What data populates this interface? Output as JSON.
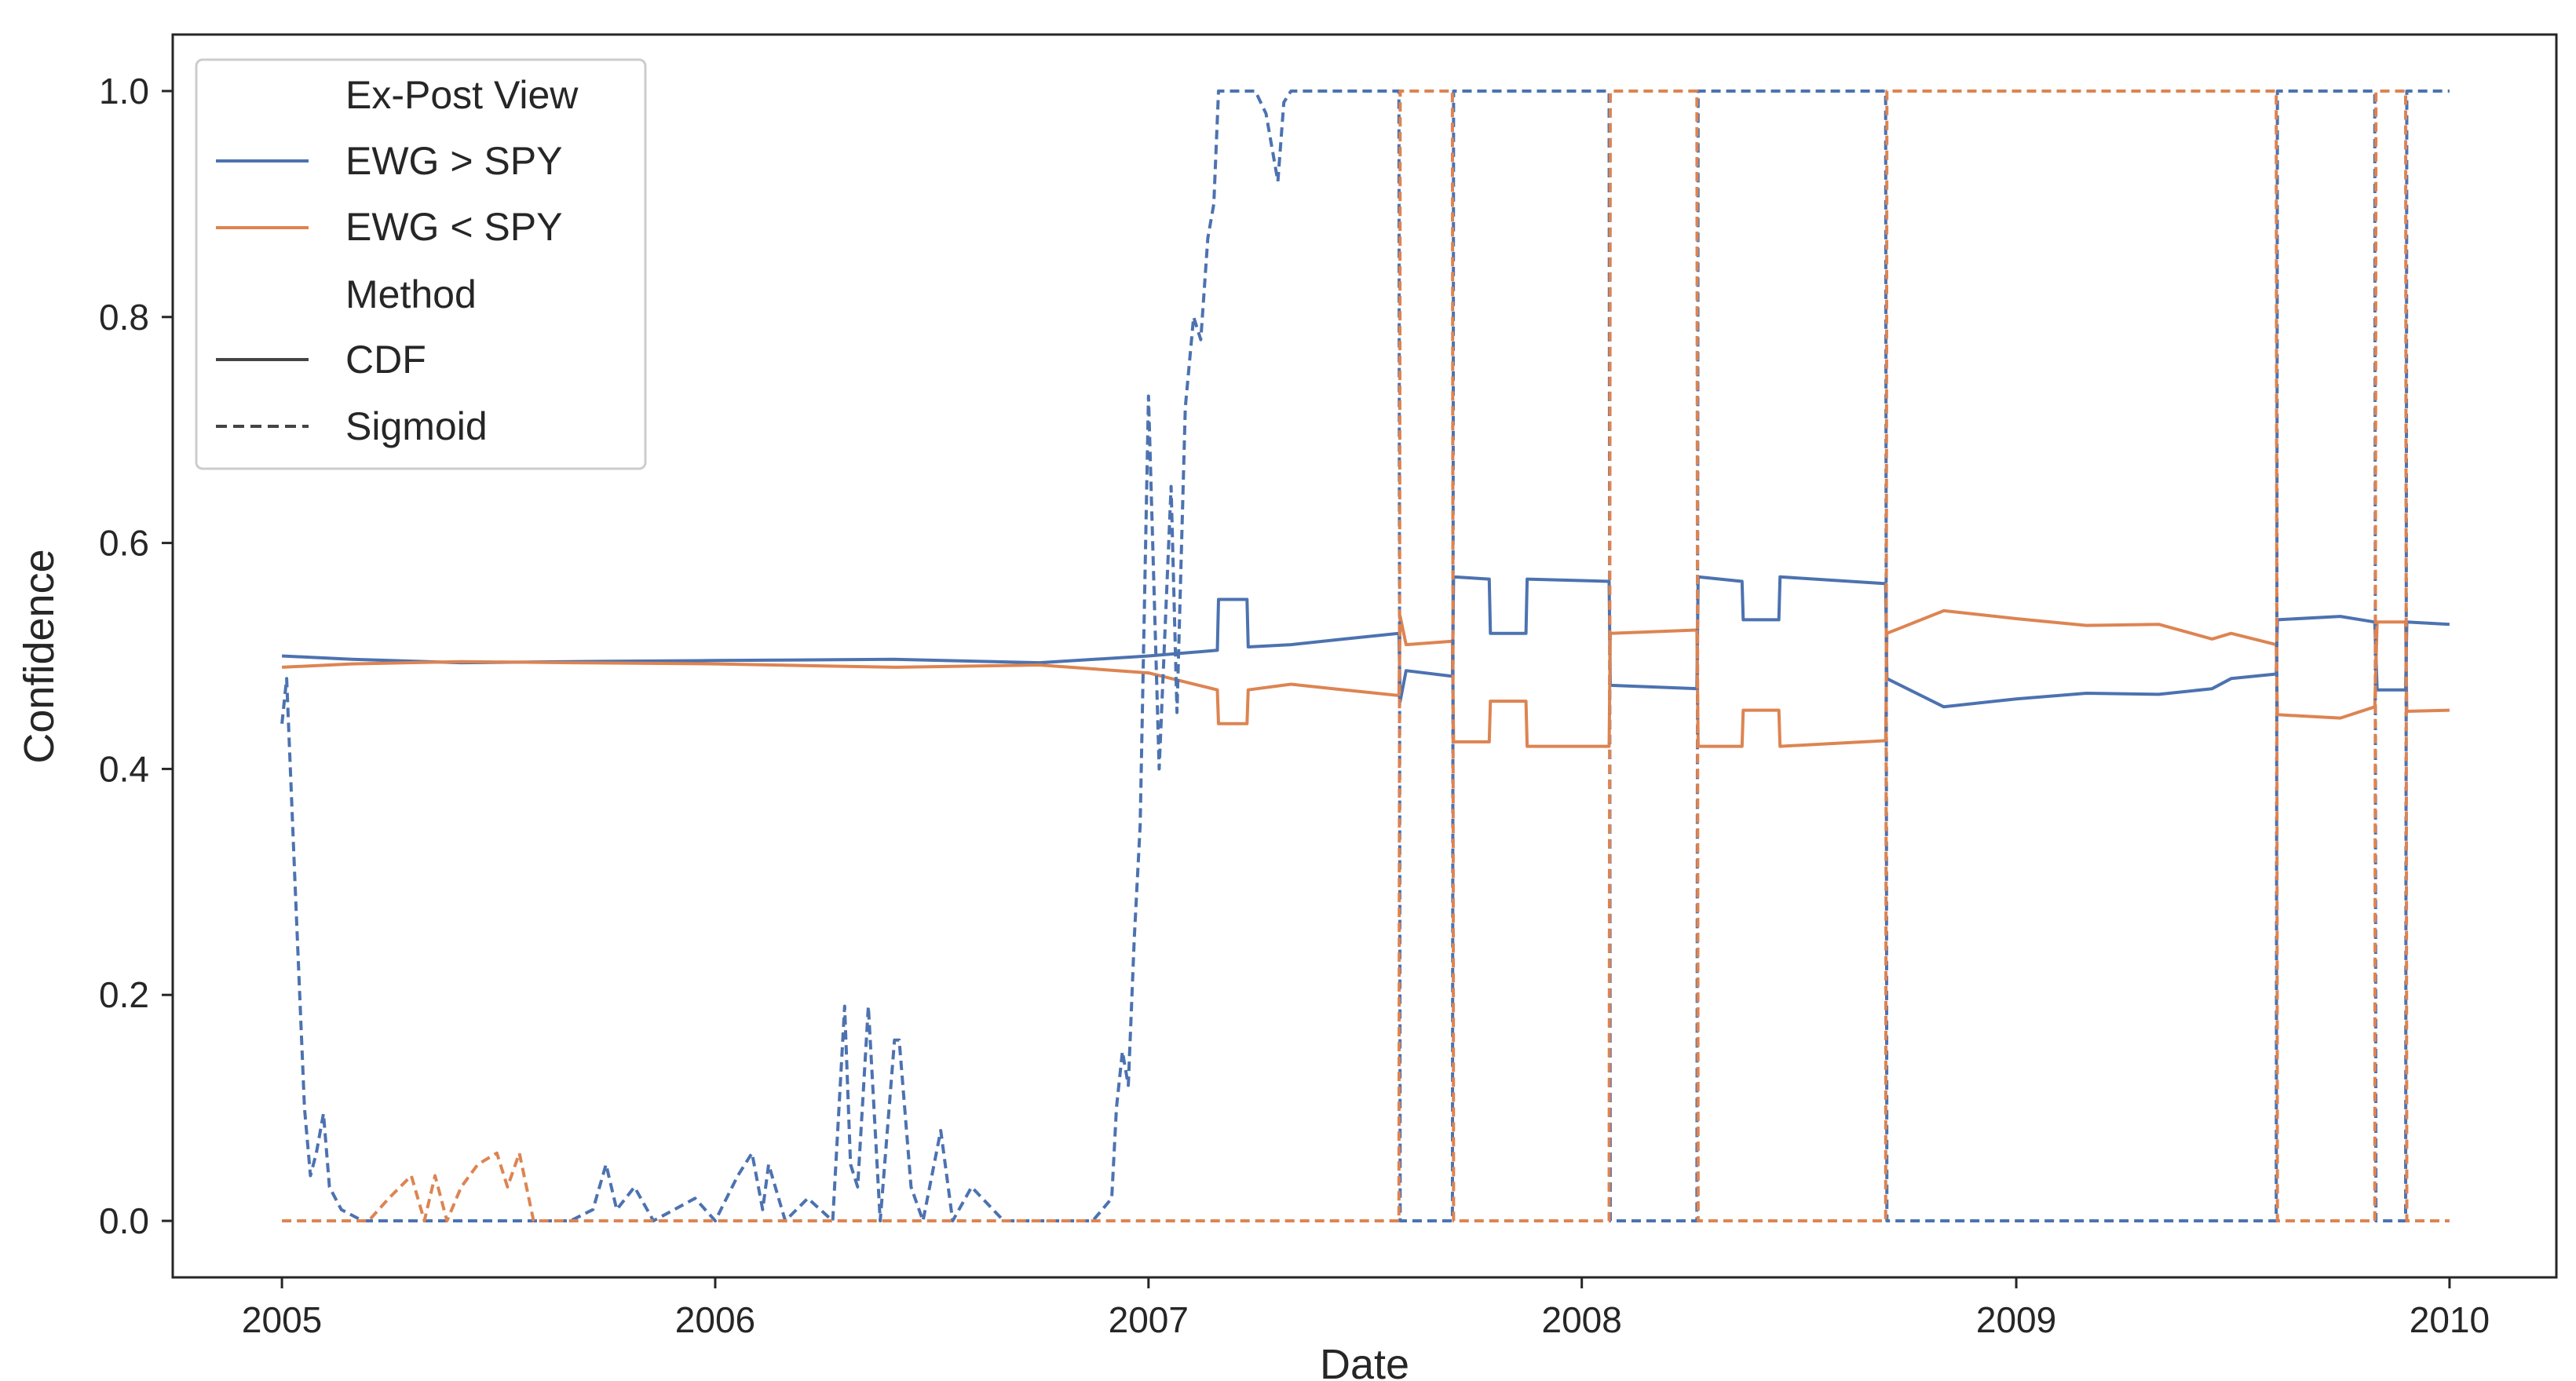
{
  "chart_data": {
    "type": "line",
    "title": "",
    "xlabel": "Date",
    "ylabel": "Confidence",
    "x_axis_type": "date",
    "xlim": [
      "2004-10-01",
      "2010-04-01"
    ],
    "ylim": [
      -0.05,
      1.05
    ],
    "x_ticks": [
      "2005",
      "2006",
      "2007",
      "2008",
      "2009",
      "2010"
    ],
    "y_ticks": [
      "0.0",
      "0.2",
      "0.4",
      "0.6",
      "0.8",
      "1.0"
    ],
    "grid": false,
    "legend": {
      "placement": "top-left",
      "hue_title": "Ex-Post View",
      "style_title": "Method",
      "entries": [
        {
          "label": "EWG > SPY",
          "color": "#4c72b0",
          "style": "solid"
        },
        {
          "label": "EWG < SPY",
          "color": "#dd8452",
          "style": "solid"
        },
        {
          "label": "CDF",
          "color": "#444444",
          "style": "solid"
        },
        {
          "label": "Sigmoid",
          "color": "#444444",
          "style": "dashed"
        }
      ]
    },
    "series": [
      {
        "name": "EWG > SPY",
        "method": "CDF",
        "color": "#4c72b0",
        "dashed": false,
        "points": [
          [
            "2005-01-01",
            0.5
          ],
          [
            "2005-03-01",
            0.497
          ],
          [
            "2005-06-01",
            0.494
          ],
          [
            "2005-09-01",
            0.495
          ],
          [
            "2006-01-01",
            0.496
          ],
          [
            "2006-06-01",
            0.497
          ],
          [
            "2006-10-01",
            0.494
          ],
          [
            "2007-01-01",
            0.5
          ],
          [
            "2007-02-28",
            0.505
          ],
          [
            "2007-03-01",
            0.55
          ],
          [
            "2007-03-25",
            0.55
          ],
          [
            "2007-03-26",
            0.508
          ],
          [
            "2007-05-01",
            0.51
          ],
          [
            "2007-06-15",
            0.515
          ],
          [
            "2007-07-31",
            0.52
          ],
          [
            "2007-08-01",
            0.46
          ],
          [
            "2007-08-06",
            0.487
          ],
          [
            "2007-09-14",
            0.482
          ],
          [
            "2007-09-15",
            0.57
          ],
          [
            "2007-10-15",
            0.568
          ],
          [
            "2007-10-16",
            0.52
          ],
          [
            "2007-11-15",
            0.52
          ],
          [
            "2007-11-16",
            0.568
          ],
          [
            "2008-01-24",
            0.566
          ],
          [
            "2008-01-25",
            0.474
          ],
          [
            "2008-04-07",
            0.471
          ],
          [
            "2008-04-08",
            0.57
          ],
          [
            "2008-05-15",
            0.566
          ],
          [
            "2008-05-16",
            0.532
          ],
          [
            "2008-06-15",
            0.532
          ],
          [
            "2008-06-16",
            0.57
          ],
          [
            "2008-09-13",
            0.564
          ],
          [
            "2008-09-14",
            0.48
          ],
          [
            "2008-11-01",
            0.455
          ],
          [
            "2009-01-01",
            0.462
          ],
          [
            "2009-03-01",
            0.467
          ],
          [
            "2009-05-01",
            0.466
          ],
          [
            "2009-06-15",
            0.471
          ],
          [
            "2009-07-01",
            0.48
          ],
          [
            "2009-08-08",
            0.484
          ],
          [
            "2009-08-09",
            0.532
          ],
          [
            "2009-10-01",
            0.535
          ],
          [
            "2009-10-30",
            0.53
          ],
          [
            "2009-11-01",
            0.47
          ],
          [
            "2009-11-25",
            0.47
          ],
          [
            "2009-11-26",
            0.53
          ],
          [
            "2010-01-01",
            0.528
          ]
        ]
      },
      {
        "name": "EWG < SPY",
        "method": "CDF",
        "color": "#dd8452",
        "dashed": false,
        "points": [
          [
            "2005-01-01",
            0.49
          ],
          [
            "2005-03-01",
            0.493
          ],
          [
            "2005-06-01",
            0.495
          ],
          [
            "2005-09-01",
            0.494
          ],
          [
            "2006-01-01",
            0.493
          ],
          [
            "2006-06-01",
            0.49
          ],
          [
            "2006-10-01",
            0.492
          ],
          [
            "2007-01-01",
            0.485
          ],
          [
            "2007-02-28",
            0.47
          ],
          [
            "2007-03-01",
            0.44
          ],
          [
            "2007-03-25",
            0.44
          ],
          [
            "2007-03-26",
            0.47
          ],
          [
            "2007-05-01",
            0.475
          ],
          [
            "2007-06-15",
            0.47
          ],
          [
            "2007-07-31",
            0.465
          ],
          [
            "2007-08-01",
            0.535
          ],
          [
            "2007-08-06",
            0.51
          ],
          [
            "2007-09-14",
            0.513
          ],
          [
            "2007-09-15",
            0.424
          ],
          [
            "2007-10-15",
            0.424
          ],
          [
            "2007-10-16",
            0.46
          ],
          [
            "2007-11-15",
            0.46
          ],
          [
            "2007-11-16",
            0.42
          ],
          [
            "2008-01-24",
            0.42
          ],
          [
            "2008-01-25",
            0.52
          ],
          [
            "2008-04-07",
            0.523
          ],
          [
            "2008-04-08",
            0.42
          ],
          [
            "2008-05-15",
            0.42
          ],
          [
            "2008-05-16",
            0.452
          ],
          [
            "2008-06-15",
            0.452
          ],
          [
            "2008-06-16",
            0.42
          ],
          [
            "2008-09-13",
            0.425
          ],
          [
            "2008-09-14",
            0.52
          ],
          [
            "2008-11-01",
            0.54
          ],
          [
            "2009-01-01",
            0.533
          ],
          [
            "2009-03-01",
            0.527
          ],
          [
            "2009-05-01",
            0.528
          ],
          [
            "2009-06-15",
            0.515
          ],
          [
            "2009-07-01",
            0.52
          ],
          [
            "2009-08-08",
            0.51
          ],
          [
            "2009-08-09",
            0.448
          ],
          [
            "2009-10-01",
            0.445
          ],
          [
            "2009-10-30",
            0.455
          ],
          [
            "2009-11-01",
            0.53
          ],
          [
            "2009-11-25",
            0.53
          ],
          [
            "2009-11-26",
            0.451
          ],
          [
            "2010-01-01",
            0.452
          ]
        ]
      },
      {
        "name": "EWG > SPY",
        "method": "Sigmoid",
        "color": "#4c72b0",
        "dashed": true,
        "points": [
          [
            "2005-01-01",
            0.44
          ],
          [
            "2005-01-05",
            0.48
          ],
          [
            "2005-01-12",
            0.3
          ],
          [
            "2005-01-20",
            0.1
          ],
          [
            "2005-01-25",
            0.04
          ],
          [
            "2005-01-30",
            0.06
          ],
          [
            "2005-02-05",
            0.095
          ],
          [
            "2005-02-10",
            0.03
          ],
          [
            "2005-02-20",
            0.01
          ],
          [
            "2005-03-10",
            0.0
          ],
          [
            "2005-09-01",
            0.0
          ],
          [
            "2005-09-20",
            0.01
          ],
          [
            "2005-10-01",
            0.05
          ],
          [
            "2005-10-10",
            0.01
          ],
          [
            "2005-10-25",
            0.03
          ],
          [
            "2005-11-10",
            0.0
          ],
          [
            "2005-12-15",
            0.02
          ],
          [
            "2006-01-01",
            0.0
          ],
          [
            "2006-01-20",
            0.04
          ],
          [
            "2006-02-01",
            0.06
          ],
          [
            "2006-02-10",
            0.01
          ],
          [
            "2006-02-15",
            0.05
          ],
          [
            "2006-03-01",
            0.0
          ],
          [
            "2006-03-20",
            0.02
          ],
          [
            "2006-04-10",
            0.0
          ],
          [
            "2006-04-20",
            0.19
          ],
          [
            "2006-04-25",
            0.05
          ],
          [
            "2006-05-01",
            0.03
          ],
          [
            "2006-05-10",
            0.19
          ],
          [
            "2006-05-20",
            0.0
          ],
          [
            "2006-06-01",
            0.16
          ],
          [
            "2006-06-05",
            0.16
          ],
          [
            "2006-06-15",
            0.03
          ],
          [
            "2006-06-25",
            0.0
          ],
          [
            "2006-07-10",
            0.08
          ],
          [
            "2006-07-20",
            0.0
          ],
          [
            "2006-08-05",
            0.03
          ],
          [
            "2006-09-01",
            0.0
          ],
          [
            "2006-11-15",
            0.0
          ],
          [
            "2006-12-01",
            0.02
          ],
          [
            "2006-12-05",
            0.1
          ],
          [
            "2006-12-10",
            0.15
          ],
          [
            "2006-12-15",
            0.12
          ],
          [
            "2006-12-20",
            0.25
          ],
          [
            "2006-12-25",
            0.35
          ],
          [
            "2007-01-01",
            0.73
          ],
          [
            "2007-01-10",
            0.4
          ],
          [
            "2007-01-20",
            0.65
          ],
          [
            "2007-01-25",
            0.45
          ],
          [
            "2007-02-01",
            0.72
          ],
          [
            "2007-02-08",
            0.8
          ],
          [
            "2007-02-14",
            0.78
          ],
          [
            "2007-02-20",
            0.87
          ],
          [
            "2007-02-25",
            0.9
          ],
          [
            "2007-03-01",
            1.0
          ],
          [
            "2007-04-01",
            1.0
          ],
          [
            "2007-04-10",
            0.98
          ],
          [
            "2007-04-20",
            0.92
          ],
          [
            "2007-04-25",
            0.99
          ],
          [
            "2007-05-01",
            1.0
          ],
          [
            "2007-07-31",
            1.0
          ],
          [
            "2007-08-01",
            0.0
          ],
          [
            "2007-09-14",
            0.0
          ],
          [
            "2007-09-15",
            1.0
          ],
          [
            "2008-01-24",
            1.0
          ],
          [
            "2008-01-25",
            0.0
          ],
          [
            "2008-04-07",
            0.0
          ],
          [
            "2008-04-08",
            1.0
          ],
          [
            "2008-09-13",
            1.0
          ],
          [
            "2008-09-14",
            0.0
          ],
          [
            "2009-08-08",
            0.0
          ],
          [
            "2009-08-09",
            1.0
          ],
          [
            "2009-10-30",
            1.0
          ],
          [
            "2009-10-31",
            0.0
          ],
          [
            "2009-11-25",
            0.0
          ],
          [
            "2009-11-26",
            1.0
          ],
          [
            "2010-01-01",
            1.0
          ]
        ]
      },
      {
        "name": "EWG < SPY",
        "method": "Sigmoid",
        "color": "#dd8452",
        "dashed": true,
        "points": [
          [
            "2005-01-01",
            0.0
          ],
          [
            "2005-03-15",
            0.0
          ],
          [
            "2005-04-01",
            0.02
          ],
          [
            "2005-04-20",
            0.04
          ],
          [
            "2005-05-01",
            0.0
          ],
          [
            "2005-05-10",
            0.04
          ],
          [
            "2005-05-20",
            0.0
          ],
          [
            "2005-06-01",
            0.03
          ],
          [
            "2005-06-15",
            0.05
          ],
          [
            "2005-07-01",
            0.06
          ],
          [
            "2005-07-10",
            0.03
          ],
          [
            "2005-07-20",
            0.06
          ],
          [
            "2005-08-01",
            0.0
          ],
          [
            "2007-07-31",
            0.0
          ],
          [
            "2007-08-01",
            1.0
          ],
          [
            "2007-09-14",
            1.0
          ],
          [
            "2007-09-15",
            0.0
          ],
          [
            "2008-01-24",
            0.0
          ],
          [
            "2008-01-25",
            1.0
          ],
          [
            "2008-04-07",
            1.0
          ],
          [
            "2008-04-08",
            0.0
          ],
          [
            "2008-09-13",
            0.0
          ],
          [
            "2008-09-14",
            1.0
          ],
          [
            "2009-08-08",
            1.0
          ],
          [
            "2009-08-09",
            0.0
          ],
          [
            "2009-10-30",
            0.0
          ],
          [
            "2009-10-31",
            1.0
          ],
          [
            "2009-11-25",
            1.0
          ],
          [
            "2009-11-26",
            0.0
          ],
          [
            "2010-01-01",
            0.0
          ]
        ]
      }
    ]
  }
}
